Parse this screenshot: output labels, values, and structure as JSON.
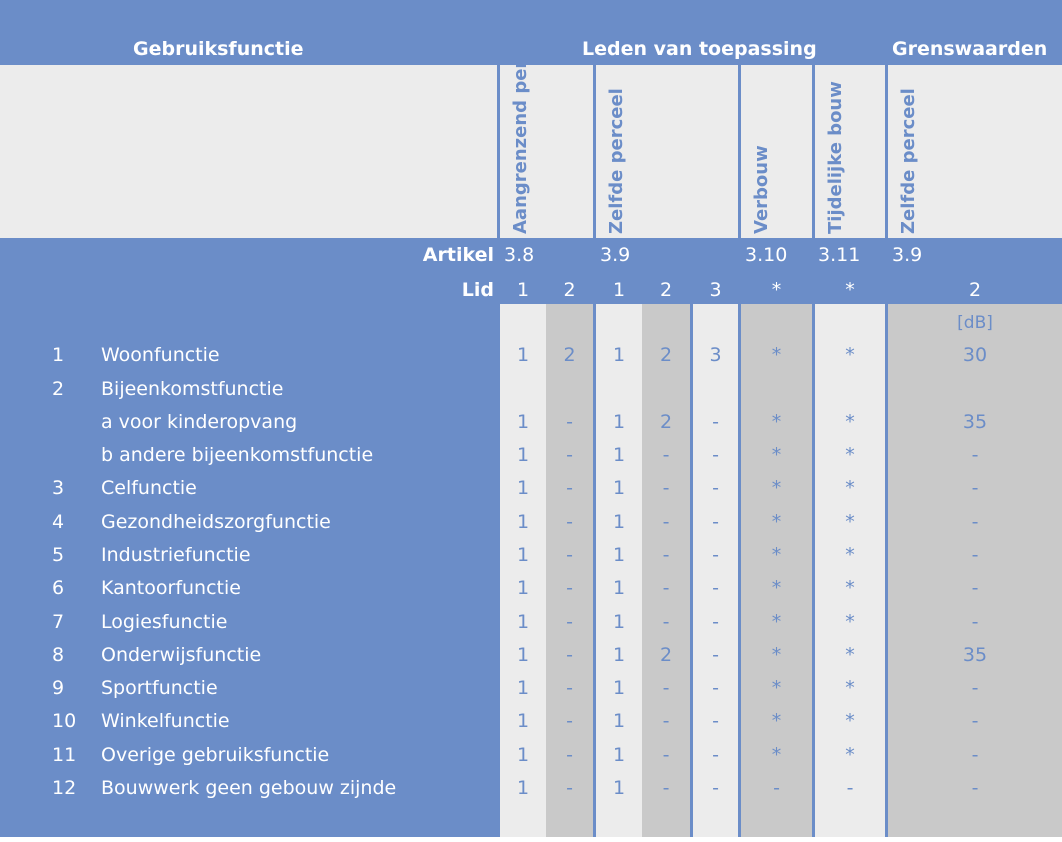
{
  "header": {
    "gebruiksfunctie": "Gebruiksfunctie",
    "leden": "Leden van toepassing",
    "grenswaarden": "Grenswaarden"
  },
  "columns": [
    {
      "label": "Aangrenzend perceel",
      "artikel": "3.8",
      "lid": "1"
    },
    {
      "label": "",
      "artikel": "",
      "lid": "2"
    },
    {
      "label": "Zelfde perceel",
      "artikel": "3.9",
      "lid": "1"
    },
    {
      "label": "",
      "artikel": "",
      "lid": "2"
    },
    {
      "label": "",
      "artikel": "",
      "lid": "3"
    },
    {
      "label": "Verbouw",
      "artikel": "3.10",
      "lid": "*"
    },
    {
      "label": "Tijdelijke bouw",
      "artikel": "3.11",
      "lid": "*"
    },
    {
      "label": "Zelfde perceel",
      "artikel": "3.9",
      "lid": "2"
    }
  ],
  "artikel_label": "Artikel",
  "lid_label": "Lid",
  "unit": "[dB]",
  "rows": [
    {
      "num": "1",
      "name": "Woonfunctie",
      "values": [
        "1",
        "2",
        "1",
        "2",
        "3",
        "*",
        "*",
        "30"
      ]
    },
    {
      "num": "2",
      "name": "Bijeenkomstfunctie",
      "values": [
        "",
        "",
        "",
        "",
        "",
        "",
        "",
        ""
      ]
    },
    {
      "num": "",
      "name": "a  voor kinderopvang",
      "values": [
        "1",
        "-",
        "1",
        "2",
        "-",
        "*",
        "*",
        "35"
      ]
    },
    {
      "num": "",
      "name": "b  andere bijeenkomstfunctie",
      "values": [
        "1",
        "-",
        "1",
        "-",
        "-",
        "*",
        "*",
        "-"
      ]
    },
    {
      "num": "3",
      "name": "Celfunctie",
      "values": [
        "1",
        "-",
        "1",
        "-",
        "-",
        "*",
        "*",
        "-"
      ]
    },
    {
      "num": "4",
      "name": "Gezondheidszorgfunctie",
      "values": [
        "1",
        "-",
        "1",
        "-",
        "-",
        "*",
        "*",
        "-"
      ]
    },
    {
      "num": "5",
      "name": "Industriefunctie",
      "values": [
        "1",
        "-",
        "1",
        "-",
        "-",
        "*",
        "*",
        "-"
      ]
    },
    {
      "num": "6",
      "name": "Kantoorfunctie",
      "values": [
        "1",
        "-",
        "1",
        "-",
        "-",
        "*",
        "*",
        "-"
      ]
    },
    {
      "num": "7",
      "name": "Logiesfunctie",
      "values": [
        "1",
        "-",
        "1",
        "-",
        "-",
        "*",
        "*",
        "-"
      ]
    },
    {
      "num": "8",
      "name": "Onderwijsfunctie",
      "values": [
        "1",
        "-",
        "1",
        "2",
        "-",
        "*",
        "*",
        "35"
      ]
    },
    {
      "num": "9",
      "name": "Sportfunctie",
      "values": [
        "1",
        "-",
        "1",
        "-",
        "-",
        "*",
        "*",
        "-"
      ]
    },
    {
      "num": "10",
      "name": "Winkelfunctie",
      "values": [
        "1",
        "-",
        "1",
        "-",
        "-",
        "*",
        "*",
        "-"
      ]
    },
    {
      "num": "11",
      "name": "Overige gebruiksfunctie",
      "values": [
        "1",
        "-",
        "1",
        "-",
        "-",
        "*",
        "*",
        "-"
      ]
    },
    {
      "num": "12",
      "name": "Bouwwerk geen gebouw zijnde",
      "values": [
        "1",
        "-",
        "1",
        "-",
        "-",
        "-",
        "-",
        "-"
      ]
    }
  ]
}
